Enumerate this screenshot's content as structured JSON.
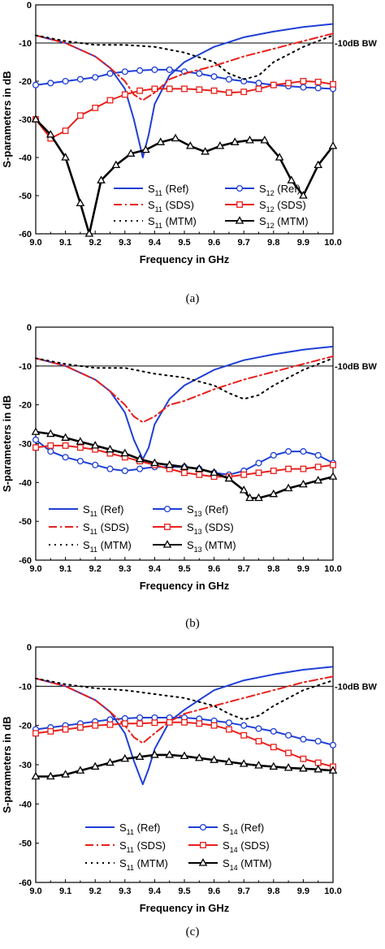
{
  "chart_data": [
    {
      "type": "line",
      "caption": "(a)",
      "xlabel": "Frequency in GHz",
      "ylabel": "S-parameters in dB",
      "xlim": [
        9.0,
        10.0
      ],
      "ylim": [
        -60,
        0
      ],
      "xticks": [
        "9.0",
        "9.1",
        "9.2",
        "9.3",
        "9.4",
        "9.5",
        "9.6",
        "9.7",
        "9.8",
        "9.9",
        "10.0"
      ],
      "yticks": [
        "0",
        "-10",
        "-20",
        "-30",
        "-40",
        "-50",
        "-60"
      ],
      "reference_line": {
        "y": -10,
        "label": "-10dB BW"
      },
      "legend": [
        {
          "main": "S",
          "sub": "11",
          "suffix": " (Ref)",
          "color": "#1f3fd6",
          "style": "solid",
          "marker": "none"
        },
        {
          "main": "S",
          "sub": "12",
          "suffix": " (Ref)",
          "color": "#1f3fd6",
          "style": "solid",
          "marker": "circle"
        },
        {
          "main": "S",
          "sub": "11",
          "suffix": " (SDS)",
          "color": "#e8201c",
          "style": "dashdot",
          "marker": "none"
        },
        {
          "main": "S",
          "sub": "12",
          "suffix": " (SDS)",
          "color": "#e8201c",
          "style": "solid",
          "marker": "square"
        },
        {
          "main": "S",
          "sub": "11",
          "suffix": " (MTM)",
          "color": "#000000",
          "style": "dot",
          "marker": "none"
        },
        {
          "main": "S",
          "sub": "12",
          "suffix": " (MTM)",
          "color": "#000000",
          "style": "solid",
          "marker": "triangle"
        }
      ],
      "series": [
        {
          "color": "#1f3fd6",
          "style": "solid",
          "marker": "none",
          "x": [
            9.0,
            9.1,
            9.2,
            9.25,
            9.3,
            9.33,
            9.36,
            9.38,
            9.4,
            9.45,
            9.5,
            9.6,
            9.7,
            9.8,
            9.9,
            10.0
          ],
          "y": [
            -8,
            -10,
            -13.5,
            -16.5,
            -22,
            -30,
            -40,
            -34,
            -26,
            -18.5,
            -15,
            -11,
            -8.5,
            -7,
            -5.8,
            -5
          ]
        },
        {
          "color": "#1f3fd6",
          "style": "solid",
          "marker": "circle",
          "x": [
            9.0,
            9.05,
            9.1,
            9.15,
            9.2,
            9.25,
            9.3,
            9.35,
            9.4,
            9.45,
            9.5,
            9.55,
            9.6,
            9.65,
            9.7,
            9.75,
            9.8,
            9.85,
            9.9,
            9.95,
            10.0
          ],
          "y": [
            -21,
            -20.5,
            -20,
            -19.5,
            -19,
            -18,
            -17.5,
            -17.2,
            -17,
            -17,
            -17.5,
            -18,
            -18.8,
            -19.5,
            -20,
            -20.5,
            -21,
            -21.3,
            -21.6,
            -21.8,
            -22
          ]
        },
        {
          "color": "#e8201c",
          "style": "dashdot",
          "marker": "none",
          "x": [
            9.0,
            9.1,
            9.2,
            9.25,
            9.3,
            9.33,
            9.36,
            9.4,
            9.45,
            9.5,
            9.6,
            9.7,
            9.8,
            9.9,
            10.0
          ],
          "y": [
            -8,
            -10,
            -13.5,
            -16.5,
            -20,
            -23.5,
            -25,
            -23,
            -19.5,
            -18,
            -16,
            -13.5,
            -11.5,
            -9.5,
            -7.5
          ]
        },
        {
          "color": "#e8201c",
          "style": "solid",
          "marker": "square",
          "x": [
            9.0,
            9.05,
            9.1,
            9.15,
            9.2,
            9.25,
            9.3,
            9.35,
            9.4,
            9.45,
            9.5,
            9.55,
            9.6,
            9.65,
            9.7,
            9.75,
            9.8,
            9.85,
            9.9,
            9.95,
            10.0
          ],
          "y": [
            -30,
            -35,
            -33,
            -29,
            -27,
            -25,
            -23.5,
            -22.5,
            -22,
            -22,
            -22,
            -22.2,
            -22.5,
            -23,
            -22.8,
            -22,
            -21,
            -20.5,
            -20,
            -20.2,
            -20.8
          ]
        },
        {
          "color": "#000000",
          "style": "dot",
          "marker": "none",
          "x": [
            9.0,
            9.1,
            9.2,
            9.3,
            9.4,
            9.5,
            9.6,
            9.65,
            9.7,
            9.75,
            9.8,
            9.9,
            10.0
          ],
          "y": [
            -8,
            -9.5,
            -10.5,
            -10.5,
            -11,
            -12.5,
            -15,
            -18,
            -19.5,
            -18.5,
            -15,
            -11,
            -8
          ]
        },
        {
          "color": "#000000",
          "style": "solid",
          "marker": "triangle",
          "x": [
            9.0,
            9.05,
            9.1,
            9.15,
            9.18,
            9.22,
            9.27,
            9.32,
            9.37,
            9.42,
            9.47,
            9.52,
            9.57,
            9.62,
            9.67,
            9.72,
            9.77,
            9.82,
            9.86,
            9.9,
            9.95,
            10.0
          ],
          "y": [
            -30,
            -34,
            -40,
            -52,
            -60,
            -46,
            -42,
            -39,
            -38,
            -36,
            -35,
            -37,
            -38.5,
            -37,
            -36,
            -35.5,
            -35.5,
            -40,
            -46,
            -50,
            -42,
            -37
          ]
        }
      ]
    },
    {
      "type": "line",
      "caption": "(b)",
      "xlabel": "Frequency in GHz",
      "ylabel": "S-parameters in dB",
      "xlim": [
        9.0,
        10.0
      ],
      "ylim": [
        -60,
        0
      ],
      "xticks": [
        "9.0",
        "9.1",
        "9.2",
        "9.3",
        "9.4",
        "9.5",
        "9.6",
        "9.7",
        "9.8",
        "9.9",
        "10.0"
      ],
      "yticks": [
        "0",
        "-10",
        "-20",
        "-30",
        "-40",
        "-50",
        "-60"
      ],
      "reference_line": {
        "y": -10,
        "label": "-10dB BW"
      },
      "legend": [
        {
          "main": "S",
          "sub": "11",
          "suffix": " (Ref)",
          "color": "#1f3fd6",
          "style": "solid",
          "marker": "none"
        },
        {
          "main": "S",
          "sub": "13",
          "suffix": " (Ref)",
          "color": "#1f3fd6",
          "style": "solid",
          "marker": "circle"
        },
        {
          "main": "S",
          "sub": "11",
          "suffix": " (SDS)",
          "color": "#e8201c",
          "style": "dashdot",
          "marker": "none"
        },
        {
          "main": "S",
          "sub": "13",
          "suffix": " (SDS)",
          "color": "#e8201c",
          "style": "solid",
          "marker": "square"
        },
        {
          "main": "S",
          "sub": "11",
          "suffix": " (MTM)",
          "color": "#000000",
          "style": "dot",
          "marker": "none"
        },
        {
          "main": "S",
          "sub": "13",
          "suffix": " (MTM)",
          "color": "#000000",
          "style": "solid",
          "marker": "triangle"
        }
      ],
      "series": [
        {
          "color": "#1f3fd6",
          "style": "solid",
          "marker": "none",
          "x": [
            9.0,
            9.1,
            9.2,
            9.25,
            9.3,
            9.33,
            9.36,
            9.38,
            9.4,
            9.45,
            9.5,
            9.6,
            9.7,
            9.8,
            9.9,
            10.0
          ],
          "y": [
            -8,
            -10,
            -13.5,
            -16.5,
            -22,
            -29,
            -34,
            -31,
            -25,
            -18.5,
            -15,
            -11,
            -8.5,
            -7,
            -5.8,
            -5
          ]
        },
        {
          "color": "#1f3fd6",
          "style": "solid",
          "marker": "circle",
          "x": [
            9.0,
            9.05,
            9.1,
            9.15,
            9.2,
            9.25,
            9.3,
            9.35,
            9.4,
            9.45,
            9.5,
            9.55,
            9.6,
            9.65,
            9.7,
            9.75,
            9.8,
            9.85,
            9.9,
            9.95,
            10.0
          ],
          "y": [
            -29,
            -32,
            -33.5,
            -34.5,
            -35.5,
            -36.5,
            -37,
            -36.5,
            -36,
            -36,
            -36,
            -36.5,
            -37.5,
            -38,
            -37,
            -35,
            -33,
            -32,
            -32,
            -33,
            -35
          ]
        },
        {
          "color": "#e8201c",
          "style": "dashdot",
          "marker": "none",
          "x": [
            9.0,
            9.1,
            9.2,
            9.25,
            9.3,
            9.33,
            9.36,
            9.4,
            9.45,
            9.5,
            9.6,
            9.7,
            9.8,
            9.9,
            10.0
          ],
          "y": [
            -8,
            -10,
            -13.5,
            -16.5,
            -20,
            -23,
            -24.5,
            -23,
            -20,
            -19,
            -16,
            -13.5,
            -11.5,
            -9.5,
            -7.5
          ]
        },
        {
          "color": "#e8201c",
          "style": "solid",
          "marker": "square",
          "x": [
            9.0,
            9.05,
            9.1,
            9.15,
            9.2,
            9.25,
            9.3,
            9.35,
            9.4,
            9.45,
            9.5,
            9.55,
            9.6,
            9.65,
            9.7,
            9.75,
            9.8,
            9.85,
            9.9,
            9.95,
            10.0
          ],
          "y": [
            -31,
            -30.5,
            -30.5,
            -31,
            -31.5,
            -32.5,
            -33.5,
            -34.5,
            -35.5,
            -36.5,
            -37.5,
            -38,
            -38.5,
            -38.5,
            -38,
            -37.5,
            -37,
            -36.5,
            -36.5,
            -36,
            -35.5
          ]
        },
        {
          "color": "#000000",
          "style": "dot",
          "marker": "none",
          "x": [
            9.0,
            9.1,
            9.2,
            9.3,
            9.4,
            9.5,
            9.6,
            9.65,
            9.7,
            9.75,
            9.8,
            9.9,
            10.0
          ],
          "y": [
            -8,
            -9.5,
            -10.5,
            -10.5,
            -12,
            -13,
            -15,
            -17,
            -18.5,
            -17.5,
            -15,
            -11,
            -8
          ]
        },
        {
          "color": "#000000",
          "style": "solid",
          "marker": "triangle",
          "x": [
            9.0,
            9.05,
            9.1,
            9.15,
            9.2,
            9.25,
            9.3,
            9.35,
            9.4,
            9.45,
            9.5,
            9.55,
            9.6,
            9.65,
            9.7,
            9.72,
            9.75,
            9.8,
            9.85,
            9.9,
            9.95,
            10.0
          ],
          "y": [
            -27,
            -27.5,
            -28.5,
            -29.5,
            -30.5,
            -31.5,
            -32.5,
            -34,
            -35,
            -35.5,
            -36,
            -36.5,
            -37.5,
            -39,
            -42,
            -44,
            -44,
            -43,
            -41.5,
            -40.5,
            -39.5,
            -38.5
          ]
        }
      ]
    },
    {
      "type": "line",
      "caption": "(c)",
      "xlabel": "Frequency in GHz",
      "ylabel": "S-parameters in dB",
      "xlim": [
        9.0,
        10.0
      ],
      "ylim": [
        -60,
        0
      ],
      "xticks": [
        "9.0",
        "9.1",
        "9.2",
        "9.3",
        "9.4",
        "9.5",
        "9.6",
        "9.7",
        "9.8",
        "9.9",
        "10.0"
      ],
      "yticks": [
        "0",
        "-10",
        "-20",
        "-30",
        "-40",
        "-50",
        "-60"
      ],
      "reference_line": {
        "y": -10,
        "label": "-10dB BW"
      },
      "legend": [
        {
          "main": "S",
          "sub": "11",
          "suffix": " (Ref)",
          "color": "#1f3fd6",
          "style": "solid",
          "marker": "none"
        },
        {
          "main": "S",
          "sub": "14",
          "suffix": " (Ref)",
          "color": "#1f3fd6",
          "style": "solid",
          "marker": "circle"
        },
        {
          "main": "S",
          "sub": "11",
          "suffix": " (SDS)",
          "color": "#e8201c",
          "style": "dashdot",
          "marker": "none"
        },
        {
          "main": "S",
          "sub": "14",
          "suffix": " (SDS)",
          "color": "#e8201c",
          "style": "solid",
          "marker": "square"
        },
        {
          "main": "S",
          "sub": "11",
          "suffix": " (MTM)",
          "color": "#000000",
          "style": "dot",
          "marker": "none"
        },
        {
          "main": "S",
          "sub": "14",
          "suffix": " (MTM)",
          "color": "#000000",
          "style": "solid",
          "marker": "triangle"
        }
      ],
      "series": [
        {
          "color": "#1f3fd6",
          "style": "solid",
          "marker": "none",
          "x": [
            9.0,
            9.1,
            9.2,
            9.25,
            9.3,
            9.33,
            9.36,
            9.38,
            9.4,
            9.45,
            9.5,
            9.6,
            9.7,
            9.8,
            9.9,
            10.0
          ],
          "y": [
            -8,
            -10,
            -13.5,
            -16.5,
            -22,
            -29,
            -35,
            -31,
            -26,
            -19,
            -16,
            -11,
            -8.5,
            -7,
            -5.8,
            -5
          ]
        },
        {
          "color": "#1f3fd6",
          "style": "solid",
          "marker": "circle",
          "x": [
            9.0,
            9.05,
            9.1,
            9.15,
            9.2,
            9.25,
            9.3,
            9.35,
            9.4,
            9.45,
            9.5,
            9.55,
            9.6,
            9.65,
            9.7,
            9.75,
            9.8,
            9.85,
            9.9,
            9.95,
            10.0
          ],
          "y": [
            -21,
            -20.5,
            -20,
            -19.5,
            -19,
            -18.5,
            -18.2,
            -18,
            -18,
            -18,
            -18,
            -18.3,
            -18.8,
            -19.3,
            -20,
            -20.8,
            -21.5,
            -22.5,
            -23.5,
            -24,
            -25
          ]
        },
        {
          "color": "#e8201c",
          "style": "dashdot",
          "marker": "none",
          "x": [
            9.0,
            9.1,
            9.2,
            9.25,
            9.3,
            9.33,
            9.36,
            9.4,
            9.45,
            9.5,
            9.6,
            9.7,
            9.8,
            9.9,
            10.0
          ],
          "y": [
            -8,
            -10,
            -13.5,
            -16.5,
            -20,
            -23,
            -24.5,
            -22,
            -19,
            -17,
            -15,
            -13,
            -11,
            -9,
            -7.5
          ]
        },
        {
          "color": "#e8201c",
          "style": "solid",
          "marker": "square",
          "x": [
            9.0,
            9.05,
            9.1,
            9.15,
            9.2,
            9.25,
            9.3,
            9.35,
            9.4,
            9.45,
            9.5,
            9.55,
            9.6,
            9.65,
            9.7,
            9.75,
            9.8,
            9.85,
            9.9,
            9.95,
            10.0
          ],
          "y": [
            -22,
            -21.5,
            -21,
            -20.5,
            -20,
            -19.8,
            -19.5,
            -19.5,
            -19.3,
            -19.2,
            -19.2,
            -19.5,
            -20,
            -21,
            -22.5,
            -24,
            -25.5,
            -27,
            -28.5,
            -29.5,
            -30.5
          ]
        },
        {
          "color": "#000000",
          "style": "dot",
          "marker": "none",
          "x": [
            9.0,
            9.1,
            9.2,
            9.3,
            9.4,
            9.5,
            9.6,
            9.65,
            9.7,
            9.75,
            9.8,
            9.9,
            10.0
          ],
          "y": [
            -8,
            -9.5,
            -10.5,
            -11,
            -12,
            -13,
            -15,
            -17,
            -18.5,
            -17.5,
            -15,
            -11,
            -8.5
          ]
        },
        {
          "color": "#000000",
          "style": "solid",
          "marker": "triangle",
          "x": [
            9.0,
            9.05,
            9.1,
            9.15,
            9.2,
            9.25,
            9.3,
            9.35,
            9.4,
            9.45,
            9.5,
            9.55,
            9.6,
            9.65,
            9.7,
            9.75,
            9.8,
            9.85,
            9.9,
            9.95,
            10.0
          ],
          "y": [
            -33,
            -33,
            -32.5,
            -31.5,
            -30.5,
            -29.5,
            -28.5,
            -28,
            -27.5,
            -27.5,
            -27.8,
            -28.3,
            -28.8,
            -29.3,
            -29.8,
            -30.2,
            -30.5,
            -30.8,
            -31,
            -31.2,
            -31.5
          ]
        }
      ]
    }
  ]
}
